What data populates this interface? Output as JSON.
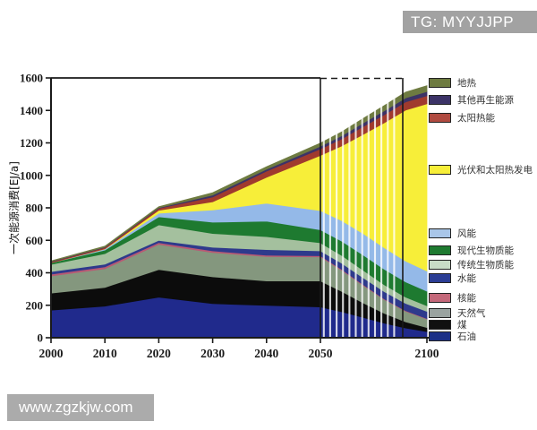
{
  "watermarks": {
    "top": "TG: MYYJJPP",
    "bottom": "www.zgzkjw.com"
  },
  "chart_data": {
    "type": "area",
    "stacked": true,
    "title": "",
    "xlabel": "",
    "ylabel": "一次能源消费[EJ/a]",
    "ylim": [
      0,
      1600
    ],
    "grid": false,
    "legend_position": "right",
    "y_ticks": [
      0,
      200,
      400,
      600,
      800,
      1000,
      1200,
      1400,
      1600
    ],
    "x_ticks": [
      2000,
      2010,
      2020,
      2030,
      2040,
      2050,
      2100
    ],
    "axis_notes": "time axis compressed after 2050; dashed frame top and vertical guide lines at 2050 and ~2088; white year-stripes between 2050 and 2088",
    "years": [
      2000,
      2010,
      2020,
      2030,
      2040,
      2050,
      2060,
      2070,
      2080,
      2090,
      2100
    ],
    "series": [
      {
        "key": "oil",
        "label": "石油",
        "color": "#202a8c",
        "values": [
          170,
          195,
          250,
          210,
          200,
          190,
          160,
          125,
          90,
          60,
          38
        ]
      },
      {
        "key": "coal",
        "label": "煤",
        "color": "#0c0c0c",
        "values": [
          105,
          115,
          170,
          165,
          150,
          160,
          125,
          90,
          60,
          38,
          25
        ]
      },
      {
        "key": "gas",
        "label": "天然气",
        "color": "#84977e",
        "values": [
          105,
          115,
          155,
          150,
          150,
          148,
          130,
          108,
          85,
          65,
          52
        ]
      },
      {
        "key": "nuclear",
        "label": "核能",
        "color": "#b85a74",
        "values": [
          11,
          12,
          11,
          10,
          8,
          7,
          6,
          5,
          4,
          4,
          3
        ]
      },
      {
        "key": "hydro",
        "label": "水能",
        "color": "#2e3a8c",
        "values": [
          16,
          16,
          14,
          22,
          35,
          30,
          38,
          42,
          45,
          45,
          45
        ]
      },
      {
        "key": "trad_bio",
        "label": "传统生物质能",
        "color": "#a4c09e",
        "values": [
          45,
          65,
          95,
          85,
          80,
          50,
          48,
          46,
          42,
          38,
          34
        ]
      },
      {
        "key": "mod_bio",
        "label": "现代生物质能",
        "color": "#1e7a30",
        "values": [
          10,
          22,
          50,
          70,
          95,
          80,
          88,
          94,
          96,
          94,
          90
        ]
      },
      {
        "key": "wind",
        "label": "风能",
        "color": "#94b9e8",
        "values": [
          0,
          6,
          22,
          75,
          110,
          118,
          126,
          132,
          132,
          128,
          124
        ]
      },
      {
        "key": "pv_csp",
        "label": "光伏和太阳热发电",
        "color": "#f7ee39",
        "values": [
          0,
          2,
          18,
          50,
          160,
          340,
          460,
          610,
          770,
          930,
          1030
        ]
      },
      {
        "key": "solar_heat",
        "label": "太阳热能",
        "color": "#a03a2e",
        "values": [
          5,
          8,
          12,
          30,
          38,
          40,
          44,
          48,
          50,
          50,
          50
        ]
      },
      {
        "key": "other_renew",
        "label": "其他再生能源",
        "color": "#3c3367",
        "values": [
          3,
          3,
          4,
          12,
          12,
          16,
          19,
          22,
          24,
          25,
          25
        ]
      },
      {
        "key": "geothermal",
        "label": "地热",
        "color": "#6e7b41",
        "values": [
          3,
          5,
          6,
          14,
          15,
          20,
          24,
          28,
          32,
          35,
          36
        ]
      }
    ],
    "legend": [
      {
        "key": "geothermal",
        "label": "地热",
        "color": "#6e7b41"
      },
      {
        "key": "other_renew",
        "label": "其他再生能源",
        "color": "#3c3367"
      },
      {
        "key": "solar_heat",
        "label": "太阳热能",
        "color": "#b04a40"
      },
      {
        "key": "pv_csp",
        "label": "光伏和太阳热发电",
        "color": "#f7ee39"
      },
      {
        "key": "wind",
        "label": "风能",
        "color": "#a9c6e8"
      },
      {
        "key": "mod_bio",
        "label": "现代生物质能",
        "color": "#1e7a30"
      },
      {
        "key": "trad_bio",
        "label": "传统生物质能",
        "color": "#c8dcc6"
      },
      {
        "key": "hydro",
        "label": "水能",
        "color": "#2b3d94"
      },
      {
        "key": "nuclear",
        "label": "核能",
        "color": "#c4687a"
      },
      {
        "key": "gas",
        "label": "天然气",
        "color": "#9aa3a0"
      },
      {
        "key": "coal",
        "label": "煤",
        "color": "#101010"
      },
      {
        "key": "oil",
        "label": "石油",
        "color": "#1b2f86"
      }
    ]
  }
}
